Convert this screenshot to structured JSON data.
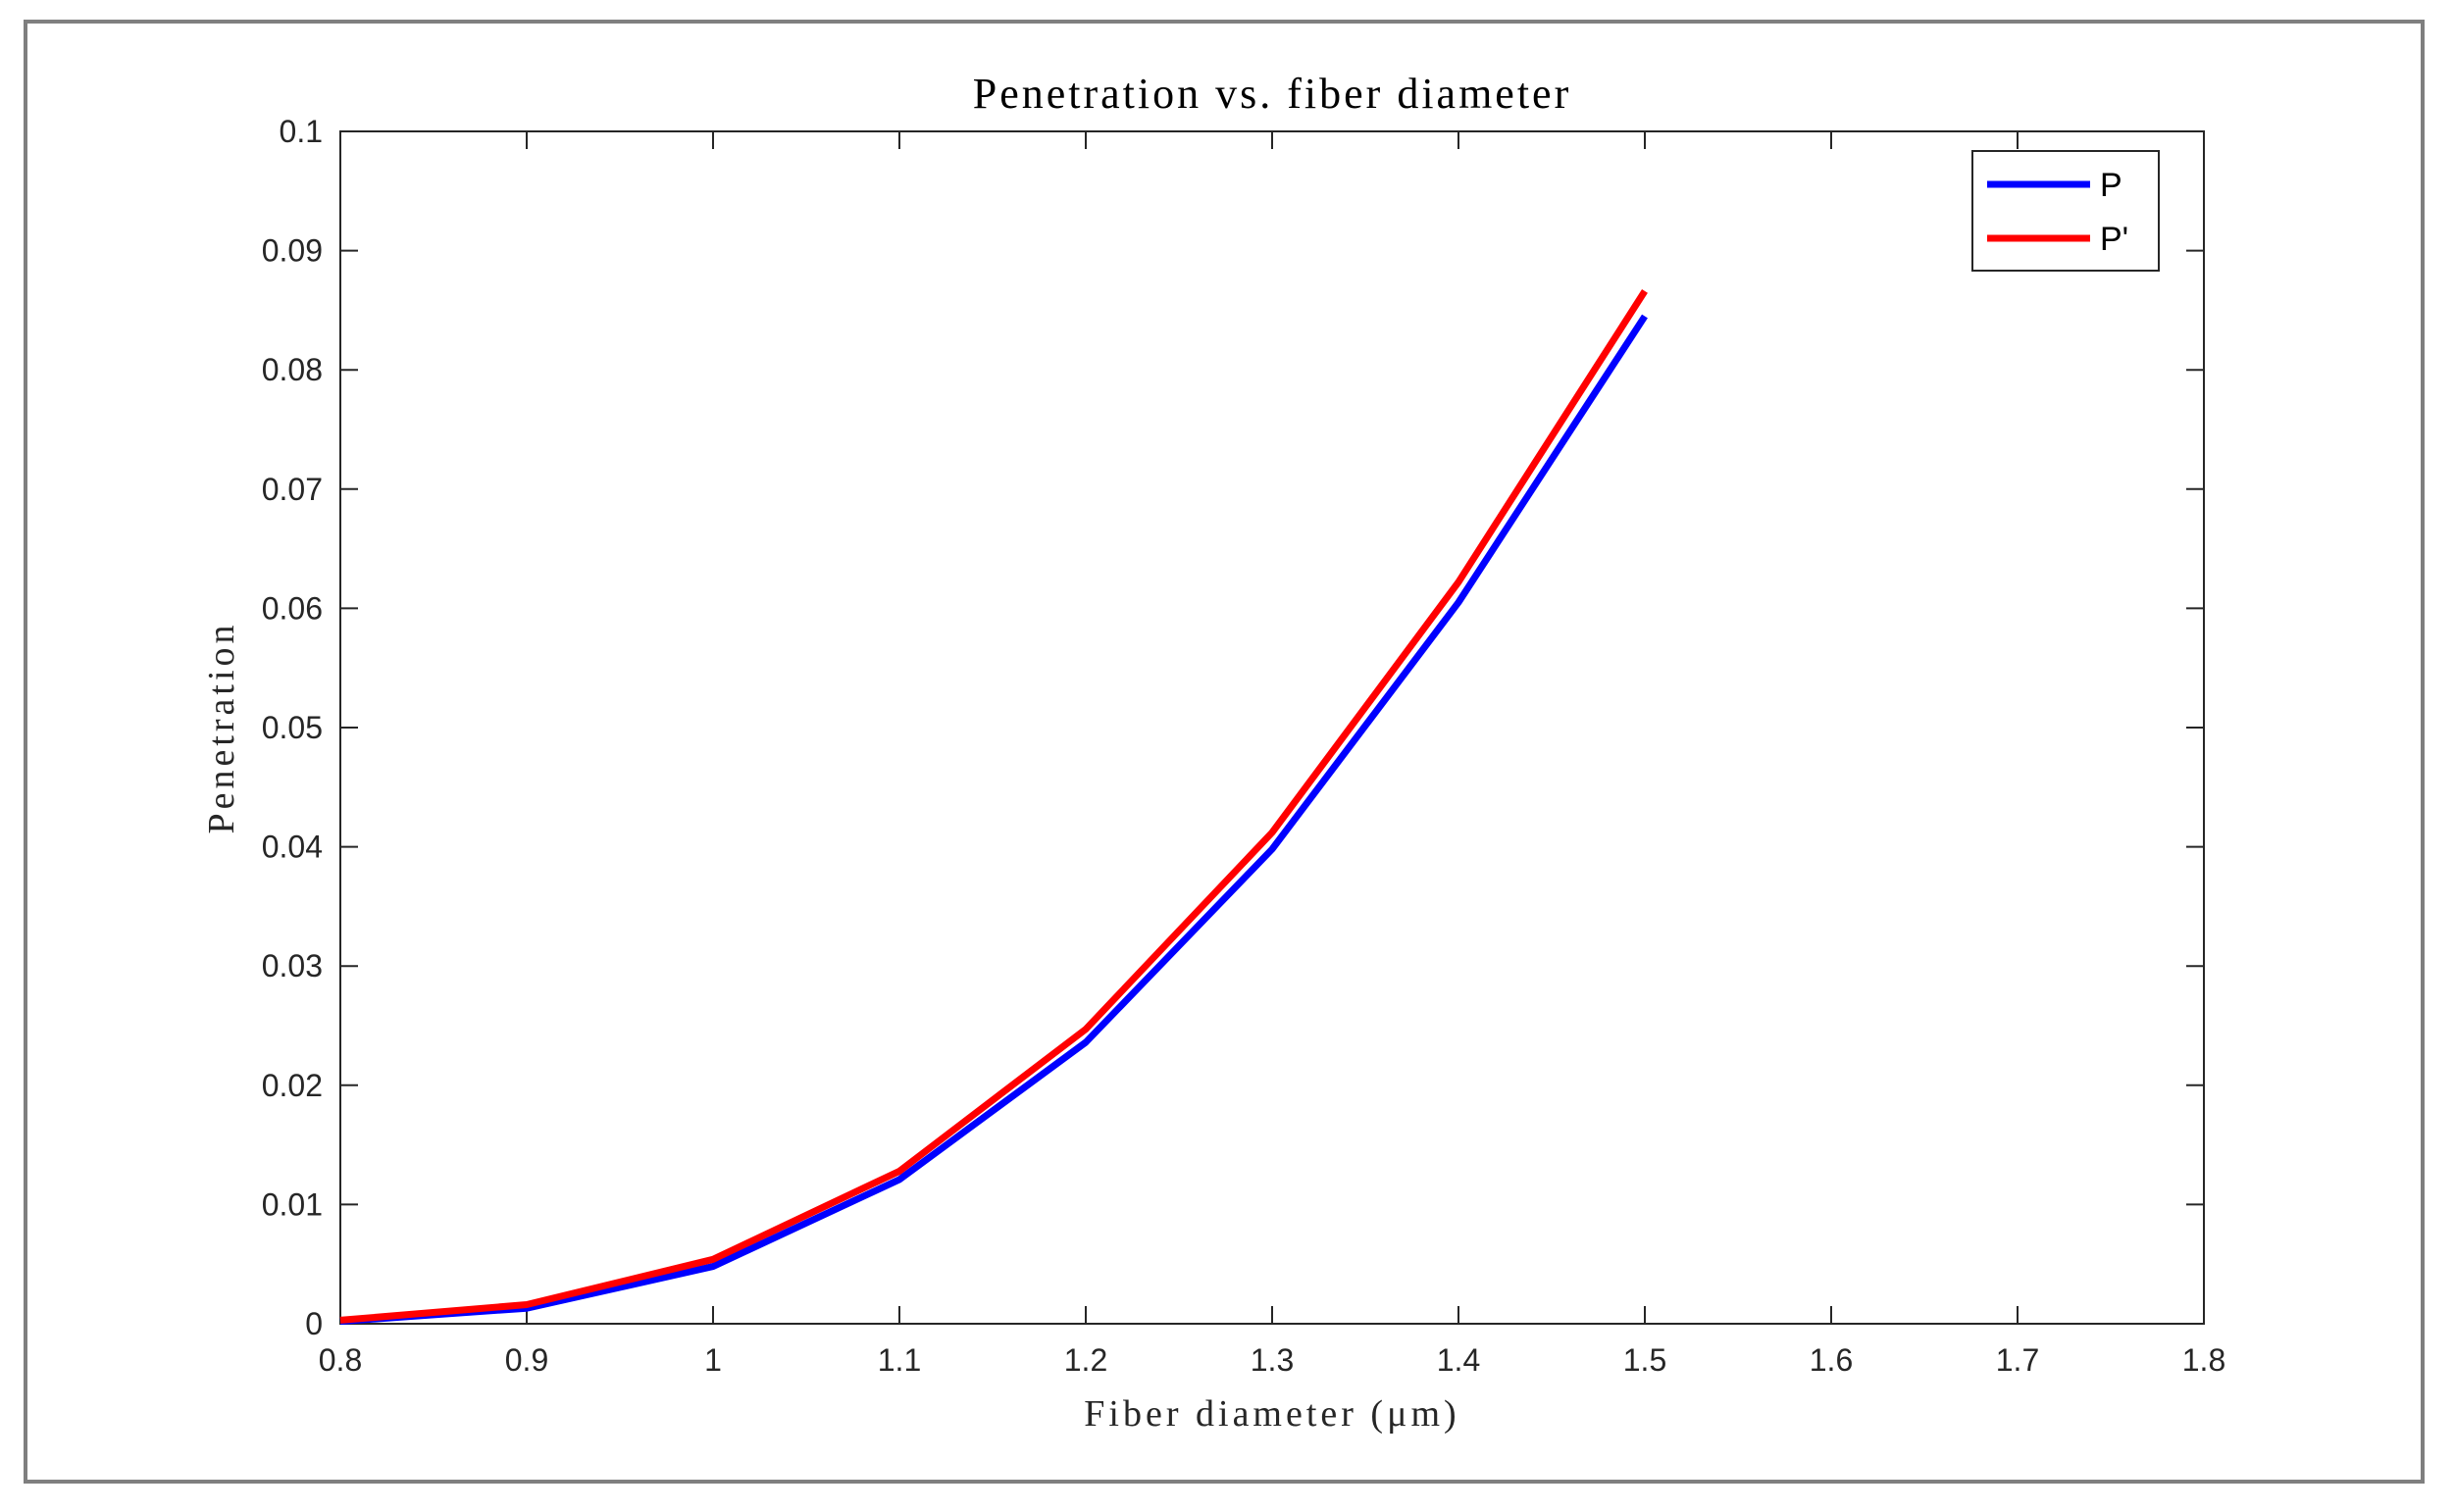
{
  "chart_data": {
    "type": "line",
    "title": "Penetration vs. fiber diameter",
    "xlabel": "Fiber diameter (μm)",
    "ylabel": "Penetration",
    "xlim": [
      0.8,
      1.8
    ],
    "ylim": [
      0,
      0.1
    ],
    "x_ticks": [
      "0.8",
      "0.9",
      "1",
      "1.1",
      "1.2",
      "1.3",
      "1.4",
      "1.5",
      "1.6",
      "1.7",
      "1.8"
    ],
    "y_ticks": [
      "0",
      "0.01",
      "0.02",
      "0.03",
      "0.04",
      "0.05",
      "0.06",
      "0.07",
      "0.08",
      "0.09",
      "0.1"
    ],
    "grid": false,
    "legend_position": "top-right",
    "x": [
      0.8,
      0.9,
      1.0,
      1.1,
      1.2,
      1.3,
      1.4,
      1.5
    ],
    "series": [
      {
        "name": "P",
        "color": "#0000ff",
        "values": [
          0.0002,
          0.0013,
          0.0048,
          0.0121,
          0.0236,
          0.0398,
          0.0605,
          0.0845
        ]
      },
      {
        "name": "P'",
        "color": "#ff0000",
        "values": [
          0.0003,
          0.0016,
          0.0054,
          0.0128,
          0.0247,
          0.0412,
          0.0622,
          0.0866
        ]
      }
    ]
  }
}
